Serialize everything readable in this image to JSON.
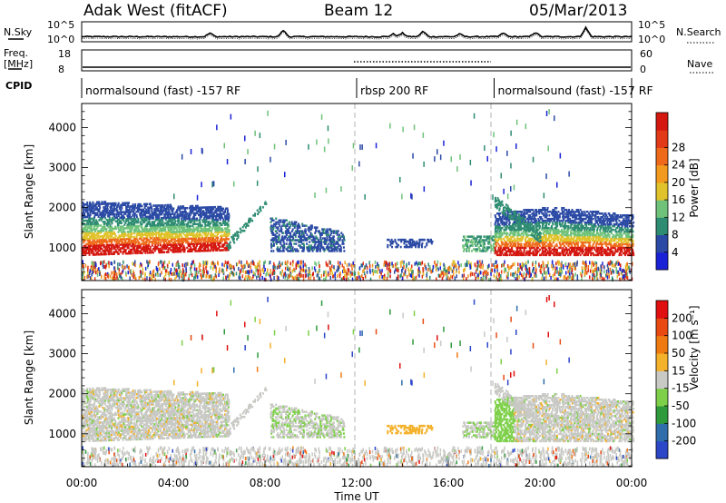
{
  "header": {
    "station": "Adak West (fitACF)",
    "beam": "Beam 12",
    "date": "05/Mar/2013"
  },
  "top_panels": {
    "nsky_label": "N.Sky",
    "nsearch_label": "N.Search",
    "freq_label_line1": "Freq.",
    "freq_label_line2": "[MHz]",
    "nave_label": "Nave",
    "cpid_label": "CPID",
    "noise_ticks": [
      "10^5",
      "10^0"
    ],
    "freq_ticks": [
      "18",
      "8"
    ],
    "nave_ticks": [
      "60",
      "0"
    ]
  },
  "cpid_segments": [
    {
      "name": "normalsound (fast) -157 RF",
      "start_hour": 0,
      "end_hour": 12
    },
    {
      "name": "rbsp 200 RF",
      "start_hour": 12,
      "end_hour": 18
    },
    {
      "name": "normalsound (fast) -157 RF",
      "start_hour": 18,
      "end_hour": 24
    }
  ],
  "chart_data": [
    {
      "type": "heatmap",
      "name": "power-panel",
      "ylabel": "Slant Range [km]",
      "xlabel": "",
      "yticks": [
        1000,
        2000,
        3000,
        4000
      ],
      "ylim": [
        180,
        4600
      ],
      "colorbar": {
        "label": "Power [dB]",
        "ticks": [
          "4",
          "8",
          "12",
          "16",
          "20",
          "24",
          "28"
        ],
        "colors": [
          "#1a22d8",
          "#2b4aa5",
          "#2e8c72",
          "#6fc27a",
          "#e0c22a",
          "#f29a1e",
          "#ee6a1a",
          "#e23a18",
          "#d41810"
        ]
      }
    },
    {
      "type": "heatmap",
      "name": "velocity-panel",
      "ylabel": "Slant Range [km]",
      "xlabel": "Time UT",
      "yticks": [
        1000,
        2000,
        3000,
        4000
      ],
      "ylim": [
        180,
        4600
      ],
      "xticks": [
        "00:00",
        "04:00",
        "08:00",
        "12:00",
        "16:00",
        "20:00",
        "00:00"
      ],
      "colorbar": {
        "label": "Velocity [m s⁻¹]",
        "ticks": [
          "200",
          "100",
          "50",
          "15",
          "-15",
          "-50",
          "-100",
          "-200"
        ],
        "colors": [
          "#2b47c8",
          "#2f6eab",
          "#2e9a3b",
          "#7ed04a",
          "#c8c8c4",
          "#f4b12a",
          "#f07a12",
          "#e84a12",
          "#e01010"
        ]
      }
    }
  ],
  "colors": {
    "gray_scatter": "#c8c8c4",
    "dashed_divider": "#a0a0a0"
  }
}
